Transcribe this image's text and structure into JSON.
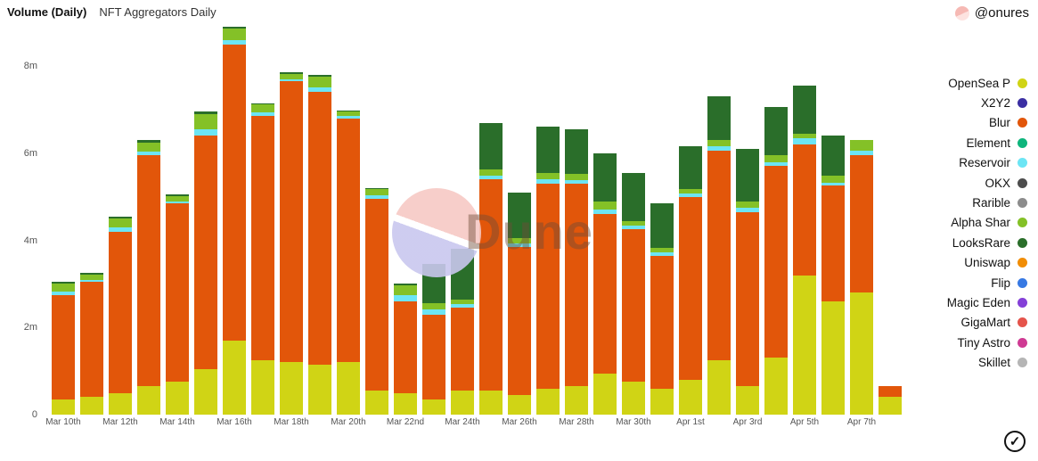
{
  "header": {
    "title": "Volume (Daily)",
    "subtitle": "NFT Aggregators Daily",
    "author": "@onures"
  },
  "watermark": {
    "text": "Dune"
  },
  "verified_check": "✓",
  "chart_data": {
    "type": "bar",
    "stacked": true,
    "title": "Volume (Daily)",
    "subtitle": "NFT Aggregators Daily",
    "ylabel": "",
    "xlabel": "",
    "ylim": [
      0,
      8.9
    ],
    "grid": false,
    "legend_position": "right",
    "yticks": [
      {
        "v": 0,
        "label": "0"
      },
      {
        "v": 2,
        "label": "2m"
      },
      {
        "v": 4,
        "label": "4m"
      },
      {
        "v": 6,
        "label": "6m"
      },
      {
        "v": 8,
        "label": "8m"
      }
    ],
    "xtick_every": 2,
    "categories": [
      "Mar 10th",
      "Mar 11th",
      "Mar 12th",
      "Mar 13th",
      "Mar 14th",
      "Mar 15th",
      "Mar 16th",
      "Mar 17th",
      "Mar 18th",
      "Mar 19th",
      "Mar 20th",
      "Mar 21st",
      "Mar 22nd",
      "Mar 23rd",
      "Mar 24th",
      "Mar 25th",
      "Mar 26th",
      "Mar 27th",
      "Mar 28th",
      "Mar 29th",
      "Mar 30th",
      "Mar 31st",
      "Apr 1st",
      "Apr 2nd",
      "Apr 3rd",
      "Apr 4th",
      "Apr 5th",
      "Apr 6th",
      "Apr 7th",
      "Apr 8th"
    ],
    "series": [
      {
        "name": "OpenSea Pro",
        "color": "#d0d415",
        "values": [
          0.35,
          0.4,
          0.5,
          0.65,
          0.75,
          1.05,
          1.7,
          1.25,
          1.2,
          1.15,
          1.2,
          0.55,
          0.5,
          0.35,
          0.55,
          0.55,
          0.45,
          0.6,
          0.65,
          0.95,
          0.75,
          0.6,
          0.8,
          1.25,
          0.65,
          1.3,
          3.2,
          2.6,
          2.8,
          0.4
        ]
      },
      {
        "name": "Blur",
        "color": "#e2560a",
        "values": [
          2.4,
          2.65,
          3.7,
          5.3,
          4.1,
          5.35,
          6.8,
          5.6,
          6.45,
          6.25,
          5.6,
          4.4,
          2.1,
          1.95,
          1.9,
          4.85,
          3.4,
          4.7,
          4.65,
          3.65,
          3.5,
          3.05,
          4.2,
          4.8,
          4.0,
          4.4,
          3.0,
          2.65,
          3.15,
          0.25
        ]
      },
      {
        "name": "Reservoir",
        "color": "#6ce5f4",
        "values": [
          0.07,
          0.05,
          0.1,
          0.08,
          0.05,
          0.15,
          0.1,
          0.08,
          0.05,
          0.1,
          0.05,
          0.08,
          0.15,
          0.12,
          0.08,
          0.08,
          0.08,
          0.1,
          0.08,
          0.1,
          0.08,
          0.07,
          0.07,
          0.1,
          0.1,
          0.1,
          0.15,
          0.08,
          0.1,
          0.0
        ]
      },
      {
        "name": "Alpha Sharks",
        "color": "#84c127",
        "values": [
          0.18,
          0.12,
          0.2,
          0.22,
          0.12,
          0.35,
          0.25,
          0.2,
          0.12,
          0.25,
          0.1,
          0.15,
          0.22,
          0.13,
          0.12,
          0.15,
          0.12,
          0.15,
          0.15,
          0.2,
          0.12,
          0.1,
          0.1,
          0.15,
          0.15,
          0.15,
          0.1,
          0.15,
          0.25,
          0.0
        ]
      },
      {
        "name": "LooksRare",
        "color": "#2a6e2a",
        "values": [
          0.05,
          0.03,
          0.05,
          0.05,
          0.03,
          0.05,
          0.05,
          0.02,
          0.03,
          0.05,
          0.02,
          0.02,
          0.03,
          0.9,
          1.15,
          1.07,
          1.05,
          1.05,
          1.02,
          1.1,
          1.1,
          1.03,
          0.98,
          1.0,
          1.2,
          1.1,
          1.1,
          0.92,
          0.0,
          0.0
        ]
      }
    ],
    "legend": [
      {
        "label": "OpenSea P",
        "color": "#d0d415"
      },
      {
        "label": "X2Y2",
        "color": "#3b2fa3"
      },
      {
        "label": "Blur",
        "color": "#e2560a"
      },
      {
        "label": "Element",
        "color": "#0eb57c"
      },
      {
        "label": "Reservoir",
        "color": "#6ce5f4"
      },
      {
        "label": "OKX",
        "color": "#4d4d4d"
      },
      {
        "label": "Rarible",
        "color": "#8c8c8c"
      },
      {
        "label": "Alpha Shar",
        "color": "#84c127"
      },
      {
        "label": "LooksRare",
        "color": "#2a6e2a"
      },
      {
        "label": "Uniswap",
        "color": "#f18d05"
      },
      {
        "label": "Flip",
        "color": "#3779e3"
      },
      {
        "label": "Magic Eden",
        "color": "#8440d8"
      },
      {
        "label": "GigaMart",
        "color": "#e5544b"
      },
      {
        "label": "Tiny Astro",
        "color": "#cf3a93"
      },
      {
        "label": "Skillet",
        "color": "#b5b5b5"
      }
    ]
  }
}
